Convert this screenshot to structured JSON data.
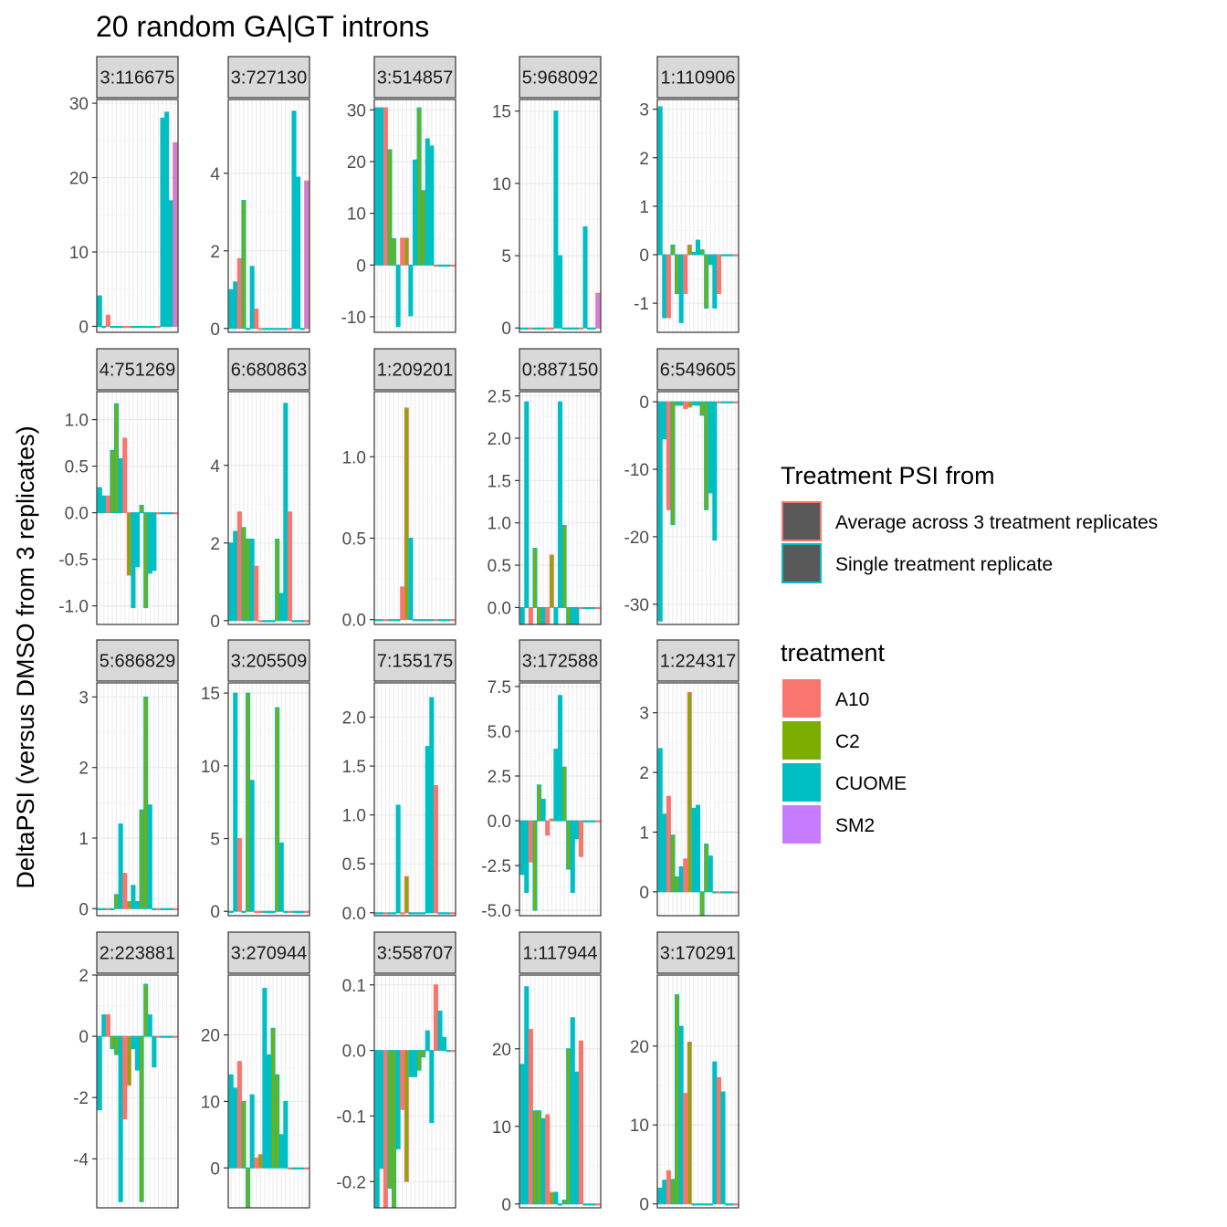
{
  "chart_data": {
    "type": "bar",
    "title": "20 random GA|GT introns",
    "ylabel": "DeltaPSI (versus DMSO from 3 replicates)",
    "xlabel": "",
    "legend_position": "right",
    "legend": {
      "fill_source": {
        "title": "Treatment PSI from",
        "items": [
          {
            "label": "Average across 3 treatment replicates",
            "outline": "#F8766D"
          },
          {
            "label": "Single treatment replicate",
            "outline": "#00BFC4"
          }
        ]
      },
      "treatment": {
        "title": "treatment",
        "items": [
          {
            "label": "A10",
            "color": "#F8766D"
          },
          {
            "label": "C2",
            "color": "#7CAE00"
          },
          {
            "label": "CUOME",
            "color": "#00BFC4"
          },
          {
            "label": "SM2",
            "color": "#C77CFF"
          }
        ]
      }
    },
    "colors": {
      "A10": "#F8766D",
      "C2": "#7CAE00",
      "CUOME": "#00BFC4",
      "SM2": "#C77CFF",
      "panel_background": "#FFFFFF",
      "strip_fill": "#D9D9D9",
      "grid_major": "#EBEBEB"
    },
    "bar_order": [
      "CUOME",
      "CUOME",
      "A10",
      "C2",
      "C2",
      "CUOME",
      "A10",
      "C2",
      "CUOME",
      "CUOME",
      "C2",
      "C2",
      "CUOME",
      "CUOME",
      "A10",
      "CUOME",
      "CUOME",
      "CUOME",
      "SM2"
    ],
    "bar_kind": [
      "single",
      "single",
      "average",
      "single",
      "single",
      "single",
      "average",
      "average",
      "single",
      "single",
      "single",
      "single",
      "single",
      "single",
      "average",
      "single",
      "single",
      "single",
      "average"
    ],
    "panels": [
      {
        "strip": "3:116675",
        "ylim": [
          -0.8,
          30.5
        ],
        "ticks": [
          0,
          10,
          20,
          30
        ],
        "values": [
          4.1,
          0,
          1.5,
          0,
          0,
          0,
          0,
          0,
          0,
          0,
          0,
          0,
          0,
          0,
          0,
          28,
          28.8,
          16.9,
          24.7
        ]
      },
      {
        "strip": "3:727130",
        "ylim": [
          -0.1,
          5.9
        ],
        "ticks": [
          0,
          2,
          4
        ],
        "values": [
          1.0,
          1.2,
          1.8,
          3.3,
          0,
          1.6,
          0.5,
          0,
          0,
          0,
          0,
          0,
          0,
          0,
          0,
          5.6,
          3.9,
          0,
          3.8
        ]
      },
      {
        "strip": "3:514857",
        "ylim": [
          -13,
          32
        ],
        "ticks": [
          -10,
          0,
          10,
          20,
          30
        ],
        "values": [
          30.4,
          30.4,
          30.4,
          22.3,
          5.1,
          -11.9,
          5.2,
          5.2,
          -9.8,
          20.3,
          30.4,
          14.4,
          24.4,
          23,
          0,
          0,
          0,
          0,
          0
        ]
      },
      {
        "strip": "5:968092",
        "ylim": [
          -0.3,
          15.8
        ],
        "ticks": [
          0,
          5,
          10,
          15
        ],
        "values": [
          0,
          0,
          0,
          0,
          0,
          0,
          0,
          0,
          15,
          5,
          0,
          0,
          0,
          0,
          0,
          7,
          0,
          0,
          2.4
        ]
      },
      {
        "strip": "1:110906",
        "ylim": [
          -1.6,
          3.2
        ],
        "ticks": [
          -1,
          0,
          1,
          2,
          3
        ],
        "values": [
          3.05,
          -1.3,
          -1.3,
          0.2,
          -0.8,
          -1.4,
          -0.8,
          0.2,
          0.05,
          0.3,
          0.1,
          -1.1,
          -0.2,
          -1.1,
          -0.8,
          0,
          0,
          0,
          0
        ]
      },
      {
        "strip": "4:751269",
        "ylim": [
          -1.2,
          1.3
        ],
        "ticks": [
          -1.0,
          -0.5,
          0.0,
          0.5,
          1.0
        ],
        "values": [
          0.27,
          0.18,
          0.18,
          0.67,
          1.17,
          0.58,
          0.8,
          -0.67,
          -1.02,
          -0.58,
          0.08,
          -1.02,
          -0.65,
          -0.62,
          0,
          0,
          0,
          0,
          0
        ]
      },
      {
        "strip": "6:680863",
        "ylim": [
          -0.1,
          5.9
        ],
        "ticks": [
          0,
          2,
          4
        ],
        "values": [
          2.0,
          2.3,
          2.8,
          2.4,
          2.1,
          2.1,
          1.4,
          0,
          0,
          0,
          0,
          2.1,
          0.7,
          5.6,
          2.8,
          0,
          0,
          0,
          0
        ]
      },
      {
        "strip": "1:209201",
        "ylim": [
          -0.03,
          1.4
        ],
        "ticks": [
          0.0,
          0.5,
          1.0
        ],
        "values": [
          0,
          0,
          0,
          0,
          0,
          0,
          0.2,
          1.3,
          0.5,
          0,
          0,
          0,
          0,
          0,
          0,
          0,
          0,
          0,
          0
        ]
      },
      {
        "strip": "0:887150",
        "ylim": [
          -0.2,
          2.55
        ],
        "ticks": [
          0.0,
          0.5,
          1.0,
          1.5,
          2.0,
          2.5
        ],
        "values": [
          -0.2,
          2.43,
          -0.2,
          0.7,
          -0.2,
          -0.2,
          -0.2,
          0.62,
          -0.2,
          2.43,
          0.97,
          -0.2,
          -0.2,
          -0.2,
          0,
          0,
          0,
          0,
          0
        ]
      },
      {
        "strip": "6:549605",
        "ylim": [
          -33,
          1.5
        ],
        "ticks": [
          -30,
          -20,
          -10,
          0
        ],
        "values": [
          -32.5,
          -5.5,
          -16,
          -18.2,
          -0.5,
          -0.5,
          -1,
          -0.8,
          -0.5,
          -0.5,
          -2,
          -16,
          -13.5,
          -20.5,
          0,
          0,
          0,
          0,
          0
        ]
      },
      {
        "strip": "5:686829",
        "ylim": [
          -0.1,
          3.2
        ],
        "ticks": [
          0,
          1,
          2,
          3
        ],
        "values": [
          0,
          0,
          0,
          0,
          0.2,
          1.2,
          0.5,
          0.1,
          0.33,
          0.1,
          1.4,
          3.0,
          1.47,
          0,
          0,
          0,
          0,
          0,
          0
        ]
      },
      {
        "strip": "3:205509",
        "ylim": [
          -0.3,
          15.7
        ],
        "ticks": [
          0,
          5,
          10,
          15
        ],
        "values": [
          0,
          15,
          5,
          0,
          15,
          9,
          0,
          0,
          0,
          0,
          0,
          14,
          4.7,
          0,
          0,
          0,
          0,
          0,
          0
        ]
      },
      {
        "strip": "7:155175",
        "ylim": [
          -0.03,
          2.35
        ],
        "ticks": [
          0.0,
          0.5,
          1.0,
          1.5,
          2.0
        ],
        "values": [
          0,
          0,
          0,
          0,
          0,
          1.1,
          0,
          0.37,
          0,
          0,
          0,
          0,
          1.7,
          2.2,
          1.3,
          0,
          0,
          0,
          0
        ]
      },
      {
        "strip": "3:172588",
        "ylim": [
          -5.3,
          7.7
        ],
        "ticks": [
          -5.0,
          -2.5,
          0.0,
          2.5,
          5.0,
          7.5
        ],
        "values": [
          -3,
          -4,
          -2.3,
          -5,
          2,
          1.2,
          -0.8,
          0.1,
          4,
          7,
          3,
          -2.7,
          -4,
          -1,
          -2,
          0,
          0,
          0,
          0
        ]
      },
      {
        "strip": "1:224317",
        "ylim": [
          -0.4,
          3.5
        ],
        "ticks": [
          0,
          1,
          2,
          3
        ],
        "values": [
          2.4,
          1.3,
          1.6,
          0.95,
          0.25,
          0.42,
          0.55,
          3.34,
          1.4,
          1.45,
          -0.4,
          0.8,
          0.6,
          0,
          0,
          0,
          0,
          0,
          0
        ]
      },
      {
        "strip": "2:223881",
        "ylim": [
          -5.6,
          2.0
        ],
        "ticks": [
          -4,
          -2,
          0,
          2
        ],
        "values": [
          -2.4,
          0.7,
          0.7,
          -0.4,
          -0.6,
          -5.4,
          -2.7,
          -1.6,
          -0.4,
          -1.1,
          -5.4,
          1.7,
          0.7,
          -1.0,
          0,
          0,
          0,
          0,
          0
        ]
      },
      {
        "strip": "3:270944",
        "ylim": [
          -6,
          29
        ],
        "ticks": [
          0,
          10,
          20
        ],
        "values": [
          14,
          12,
          16,
          10,
          -6,
          11,
          1.5,
          2,
          27,
          17,
          21,
          14,
          5,
          10,
          0,
          0,
          0,
          0,
          0
        ]
      },
      {
        "strip": "3:558707",
        "ylim": [
          -0.24,
          0.115
        ],
        "ticks": [
          -0.2,
          -0.1,
          0.0,
          0.1
        ],
        "values": [
          -0.24,
          -0.18,
          -0.24,
          -0.21,
          -0.24,
          -0.15,
          -0.09,
          -0.2,
          -0.04,
          -0.04,
          -0.03,
          -0.01,
          0.03,
          -0.11,
          0.1,
          0.06,
          0.02,
          0,
          0
        ]
      },
      {
        "strip": "1:117944",
        "ylim": [
          -0.5,
          29.5
        ],
        "ticks": [
          0,
          10,
          20
        ],
        "values": [
          18,
          28,
          22.5,
          12,
          12,
          11,
          11.5,
          1.5,
          1.5,
          0,
          0.5,
          20,
          24,
          17,
          21,
          0,
          0,
          0,
          0
        ]
      },
      {
        "strip": "3:170291",
        "ylim": [
          -0.5,
          29
        ],
        "ticks": [
          0,
          10,
          20
        ],
        "values": [
          2,
          3,
          4.2,
          3.1,
          26.5,
          22.5,
          14,
          20.5,
          0,
          0,
          0,
          0,
          0,
          18,
          16,
          14.2,
          0,
          0,
          0
        ]
      }
    ]
  }
}
